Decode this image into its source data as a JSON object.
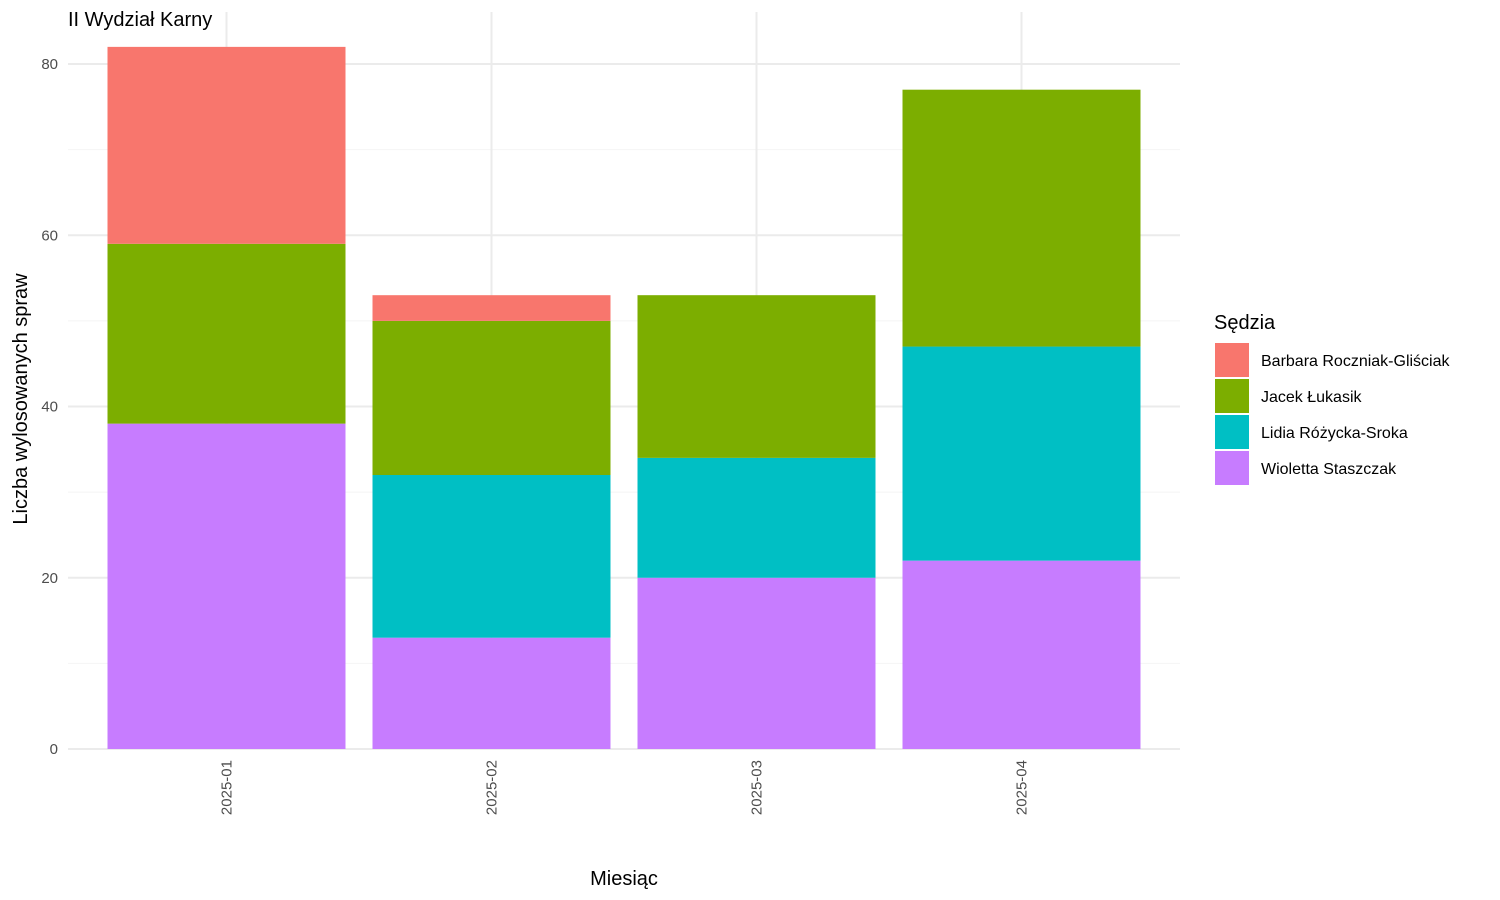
{
  "chart_data": {
    "type": "bar",
    "stacked": true,
    "title": "II Wydział Karny",
    "xlabel": "Miesiąc",
    "ylabel": "Liczba wylosowanych spraw",
    "categories": [
      "2025-01",
      "2025-02",
      "2025-03",
      "2025-04"
    ],
    "ylim": [
      0,
      82
    ],
    "yticks": [
      0,
      20,
      40,
      60,
      80
    ],
    "grid": true,
    "legend": {
      "title": "Sędzia",
      "position": "right"
    },
    "series": [
      {
        "name": "Wioletta Staszczak",
        "color": "#C77CFF",
        "values": [
          38,
          13,
          20,
          22
        ]
      },
      {
        "name": "Lidia Różycka-Sroka",
        "color": "#00BFC4",
        "values": [
          0,
          19,
          14,
          25
        ]
      },
      {
        "name": "Jacek Łukasik",
        "color": "#7CAE00",
        "values": [
          21,
          18,
          19,
          30
        ]
      },
      {
        "name": "Barbara Roczniak-Gliściak",
        "color": "#F8766D",
        "values": [
          23,
          3,
          0,
          0
        ]
      }
    ],
    "legend_order": [
      "Barbara Roczniak-Gliściak",
      "Jacek Łukasik",
      "Lidia Różycka-Sroka",
      "Wioletta Staszczak"
    ]
  }
}
